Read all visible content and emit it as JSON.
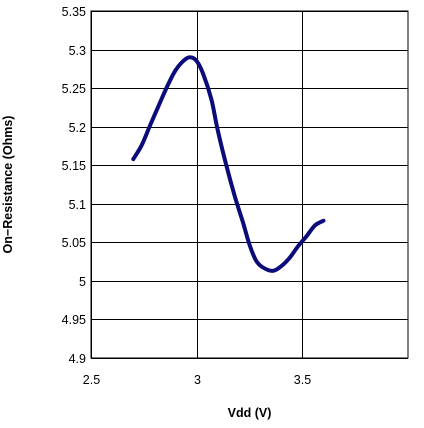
{
  "chart_data": {
    "type": "line",
    "title": "",
    "xlabel": "Vdd (V)",
    "ylabel": "On−Resistance (Ohms)",
    "xlim": [
      2.5,
      4.0
    ],
    "ylim": [
      4.9,
      5.35
    ],
    "x_ticks": [
      "2.5",
      "3",
      "3.5"
    ],
    "y_ticks": [
      "4.9",
      "4.95",
      "5",
      "5.05",
      "5.1",
      "5.15",
      "5.2",
      "5.25",
      "5.3",
      "5.35"
    ],
    "grid": true,
    "legend": "none",
    "series": [
      {
        "color": "#0b0b7a",
        "x": [
          2.7,
          2.74,
          2.78,
          2.82,
          2.86,
          2.9,
          2.94,
          2.97,
          3.0,
          3.03,
          3.07,
          3.1,
          3.14,
          3.18,
          3.22,
          3.25,
          3.28,
          3.31,
          3.36,
          3.4,
          3.44,
          3.48,
          3.52,
          3.56,
          3.6
        ],
        "y": [
          5.158,
          5.176,
          5.202,
          5.227,
          5.252,
          5.273,
          5.286,
          5.29,
          5.285,
          5.269,
          5.235,
          5.195,
          5.15,
          5.11,
          5.075,
          5.047,
          5.027,
          5.018,
          5.013,
          5.019,
          5.03,
          5.045,
          5.058,
          5.072,
          5.078
        ]
      }
    ]
  }
}
